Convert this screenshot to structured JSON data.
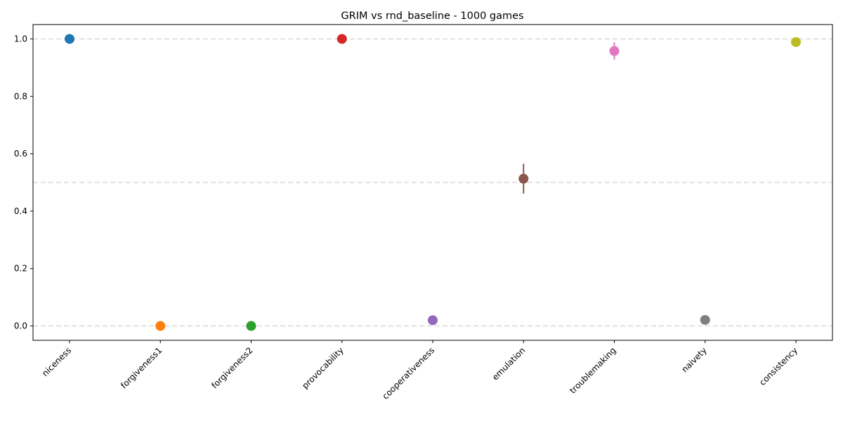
{
  "chart_data": {
    "type": "scatter",
    "title": "GRIM vs rnd_baseline - 1000 games",
    "xlabel": "",
    "ylabel": "",
    "ylim": [
      -0.05,
      1.05
    ],
    "yticks": [
      0.0,
      0.2,
      0.4,
      0.6,
      0.8,
      1.0
    ],
    "ytick_labels": [
      "0.0",
      "0.2",
      "0.4",
      "0.6",
      "0.8",
      "1.0"
    ],
    "reference_lines": [
      0.0,
      0.5,
      1.0
    ],
    "grid": false,
    "categories": [
      "niceness",
      "forgiveness1",
      "forgiveness2",
      "provocability",
      "cooperativeness",
      "emulation",
      "troublemaking",
      "naivety",
      "consistency"
    ],
    "values": [
      1.0,
      0.0,
      0.0,
      1.0,
      0.02,
      0.513,
      0.958,
      0.021,
      0.989
    ],
    "errors": [
      0,
      0,
      0,
      0,
      0,
      0.052,
      0.03,
      0,
      0
    ],
    "colors": [
      "#1f77b4",
      "#ff7f0e",
      "#2ca02c",
      "#d62728",
      "#9467bd",
      "#8c564b",
      "#e377c2",
      "#7f7f7f",
      "#bcbd22"
    ]
  }
}
